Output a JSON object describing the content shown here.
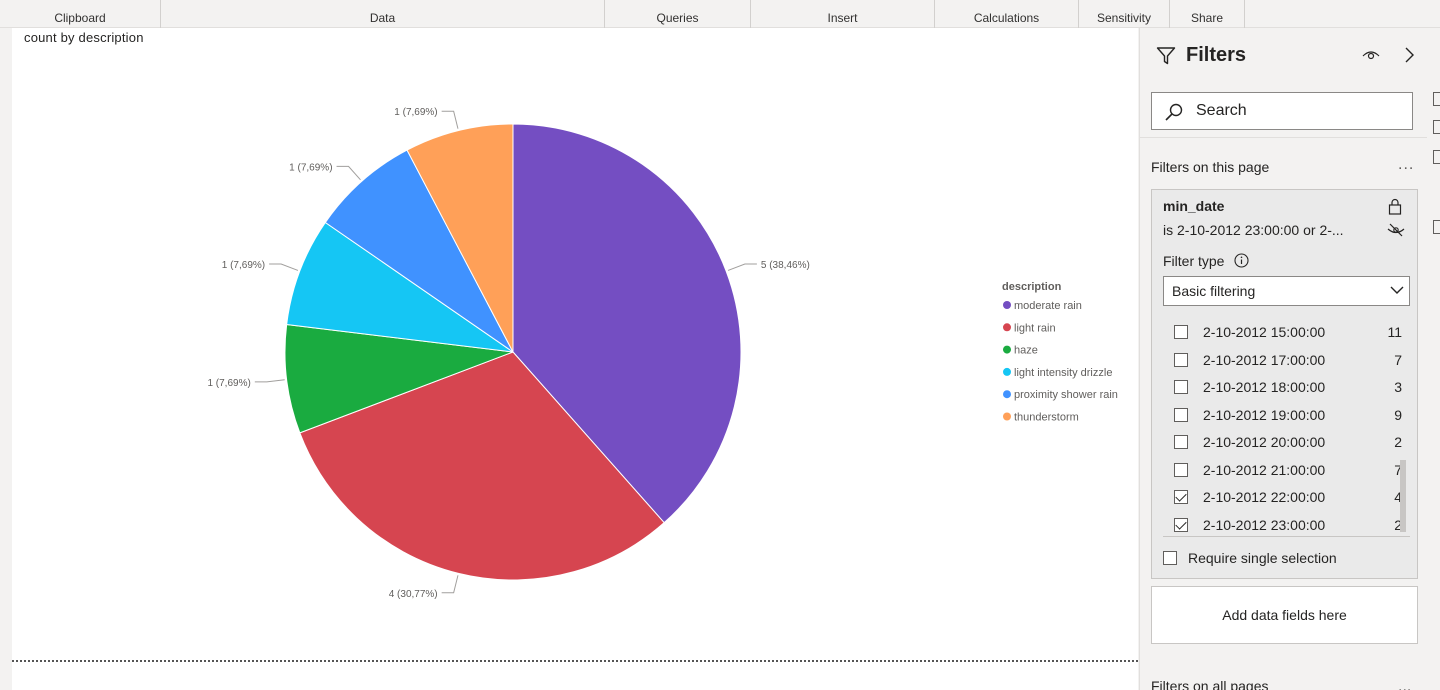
{
  "ribbon": {
    "groups": [
      "Clipboard",
      "Data",
      "Queries",
      "Insert",
      "Calculations",
      "Sensitivity",
      "Share"
    ]
  },
  "visual": {
    "title": "count by description"
  },
  "chart_data": {
    "type": "pie",
    "title": "count by description",
    "legend_title": "description",
    "legend_position": "right",
    "slices": [
      {
        "label": "moderate rain",
        "value": 5,
        "data_label": "5 (38,46%)",
        "color": "#744ec2"
      },
      {
        "label": "light rain",
        "value": 4,
        "data_label": "4 (30,77%)",
        "color": "#d64550"
      },
      {
        "label": "haze",
        "value": 1,
        "data_label": "1 (7,69%)",
        "color": "#1aab40"
      },
      {
        "label": "light intensity drizzle",
        "value": 1,
        "data_label": "1 (7,69%)",
        "color": "#15c6f4"
      },
      {
        "label": "proximity shower rain",
        "value": 1,
        "data_label": "1 (7,69%)",
        "color": "#4092ff"
      },
      {
        "label": "thunderstorm",
        "value": 1,
        "data_label": "1 (7,69%)",
        "color": "#ffa058"
      }
    ]
  },
  "filters": {
    "title": "Filters",
    "search_placeholder": "Search",
    "on_this_page_label": "Filters on this page",
    "more_label": "...",
    "card": {
      "field": "min_date",
      "condition": "is 2-10-2012 23:00:00 or 2-...",
      "filter_type_label": "Filter type",
      "filter_type_value": "Basic filtering",
      "rows": [
        {
          "label": "2-10-2012 15:00:00",
          "count": "11",
          "checked": false
        },
        {
          "label": "2-10-2012 17:00:00",
          "count": "7",
          "checked": false
        },
        {
          "label": "2-10-2012 18:00:00",
          "count": "3",
          "checked": false
        },
        {
          "label": "2-10-2012 19:00:00",
          "count": "9",
          "checked": false
        },
        {
          "label": "2-10-2012 20:00:00",
          "count": "2",
          "checked": false
        },
        {
          "label": "2-10-2012 21:00:00",
          "count": "7",
          "checked": false
        },
        {
          "label": "2-10-2012 22:00:00",
          "count": "4",
          "checked": true
        },
        {
          "label": "2-10-2012 23:00:00",
          "count": "2",
          "checked": true
        }
      ],
      "require_single_label": "Require single selection"
    },
    "add_fields_label": "Add data fields here",
    "all_pages_label": "Filters on all pages"
  }
}
